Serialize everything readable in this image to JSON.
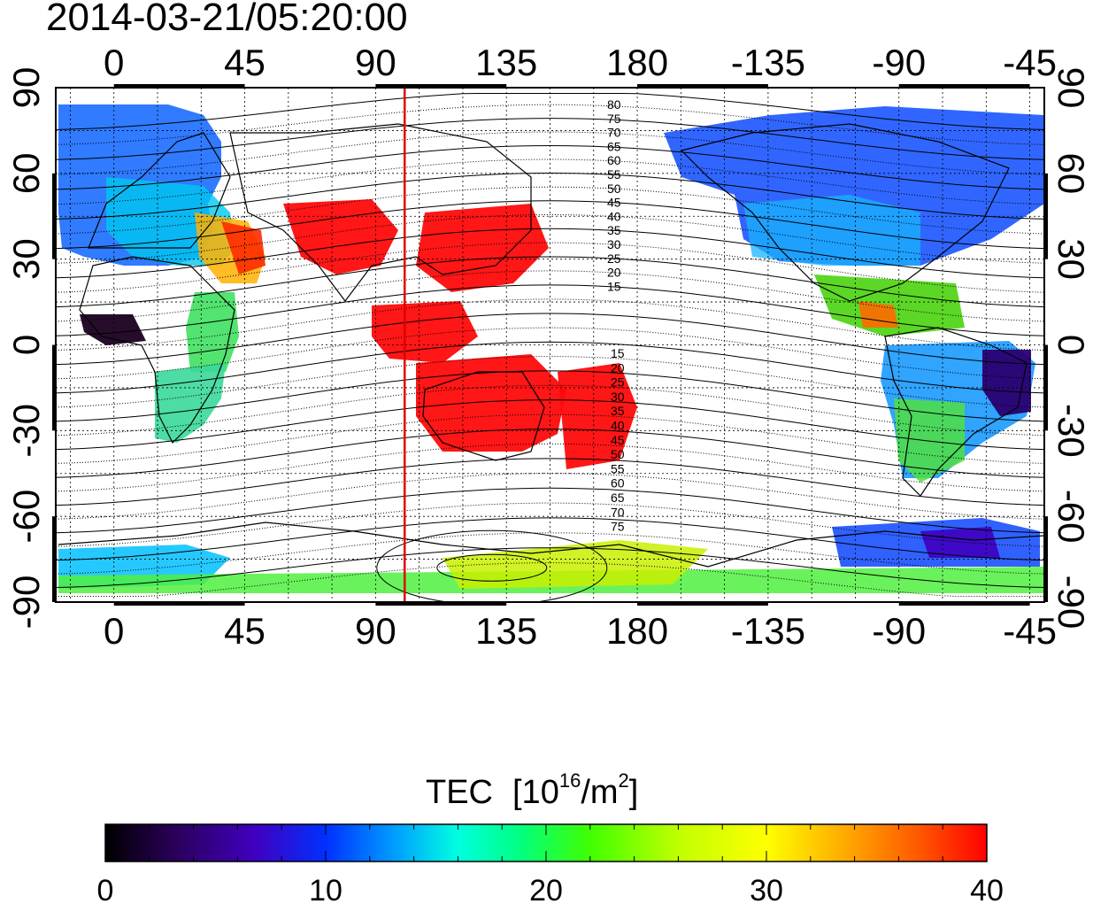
{
  "timestamp": "2014-03-21/05:20:00",
  "colorbar": {
    "title": "TEC",
    "unit_prefix": "[10",
    "unit_exp": "16",
    "unit_mid": "/m",
    "unit_exp2": "2",
    "unit_suffix": "]",
    "min": 0,
    "max": 40,
    "tick_labels": [
      "0",
      "10",
      "20",
      "30",
      "40"
    ],
    "colors": [
      "#000000",
      "#2a005a",
      "#4000c0",
      "#0030ff",
      "#00a0ff",
      "#00ffe0",
      "#00ff80",
      "#40ff00",
      "#c0ff00",
      "#ffff00",
      "#ffa000",
      "#ff5000",
      "#ff0000"
    ]
  },
  "map": {
    "x_tick_labels_top": [
      "0",
      "45",
      "90",
      "135",
      "180",
      "-135",
      "-90",
      "-45"
    ],
    "x_tick_labels_bottom": [
      "0",
      "45",
      "90",
      "135",
      "180",
      "-135",
      "-90",
      "-45"
    ],
    "y_tick_labels_left": [
      "90",
      "60",
      "30",
      "0",
      "-30",
      "-60",
      "-90"
    ],
    "y_tick_labels_right": [
      "90",
      "60",
      "30",
      "0",
      "-30",
      "-60",
      "-90"
    ],
    "lon_range_deg": [
      -20,
      320
    ],
    "lat_range_deg": [
      -90,
      90
    ],
    "marker_longitude": 100,
    "marker_color": "#e00000",
    "contour_labels_north": [
      "80",
      "75",
      "70",
      "65",
      "60",
      "55",
      "50",
      "45",
      "40",
      "35",
      "30",
      "25",
      "20",
      "15"
    ],
    "contour_labels_south": [
      "15",
      "20",
      "25",
      "30",
      "35",
      "40",
      "45",
      "50",
      "55",
      "60",
      "65",
      "70",
      "75"
    ],
    "grid": true
  }
}
